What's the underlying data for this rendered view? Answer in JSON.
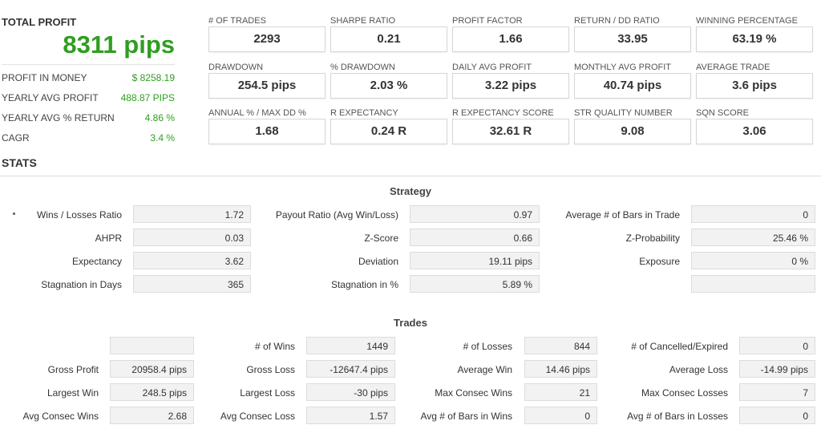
{
  "total": {
    "title": "TOTAL PROFIT",
    "value": "8311 pips",
    "rows": [
      {
        "label": "PROFIT IN MONEY",
        "value": "$ 8258.19"
      },
      {
        "label": "YEARLY AVG PROFIT",
        "value": "488.87 PIPS"
      },
      {
        "label": "YEARLY AVG % RETURN",
        "value": "4.86 %"
      },
      {
        "label": "CAGR",
        "value": "3.4 %"
      }
    ]
  },
  "metrics": [
    {
      "label": "# OF TRADES",
      "value": "2293"
    },
    {
      "label": "SHARPE RATIO",
      "value": "0.21"
    },
    {
      "label": "PROFIT FACTOR",
      "value": "1.66"
    },
    {
      "label": "RETURN / DD RATIO",
      "value": "33.95"
    },
    {
      "label": "WINNING PERCENTAGE",
      "value": "63.19 %"
    },
    {
      "label": "DRAWDOWN",
      "value": "254.5 pips"
    },
    {
      "label": "% DRAWDOWN",
      "value": "2.03 %"
    },
    {
      "label": "DAILY AVG PROFIT",
      "value": "3.22 pips"
    },
    {
      "label": "MONTHLY AVG PROFIT",
      "value": "40.74 pips"
    },
    {
      "label": "AVERAGE TRADE",
      "value": "3.6 pips"
    },
    {
      "label": "ANNUAL % / MAX DD %",
      "value": "1.68"
    },
    {
      "label": "R EXPECTANCY",
      "value": "0.24 R"
    },
    {
      "label": "R EXPECTANCY SCORE",
      "value": "32.61 R"
    },
    {
      "label": "STR QUALITY NUMBER",
      "value": "9.08"
    },
    {
      "label": "SQN SCORE",
      "value": "3.06"
    }
  ],
  "stats_title": "STATS",
  "strategy": {
    "title": "Strategy",
    "rows": [
      [
        {
          "label": "Wins / Losses Ratio",
          "value": "1.72"
        },
        {
          "label": "Payout Ratio (Avg Win/Loss)",
          "value": "0.97"
        },
        {
          "label": "Average # of Bars in Trade",
          "value": "0"
        }
      ],
      [
        {
          "label": "AHPR",
          "value": "0.03"
        },
        {
          "label": "Z-Score",
          "value": "0.66"
        },
        {
          "label": "Z-Probability",
          "value": "25.46 %"
        }
      ],
      [
        {
          "label": "Expectancy",
          "value": "3.62"
        },
        {
          "label": "Deviation",
          "value": "19.11 pips"
        },
        {
          "label": "Exposure",
          "value": "0 %"
        }
      ],
      [
        {
          "label": "Stagnation in Days",
          "value": "365"
        },
        {
          "label": "Stagnation in %",
          "value": "5.89 %"
        },
        {
          "label": "",
          "value": ""
        }
      ]
    ]
  },
  "trades": {
    "title": "Trades",
    "rows": [
      [
        {
          "label": "",
          "value": ""
        },
        {
          "label": "# of Wins",
          "value": "1449"
        },
        {
          "label": "# of Losses",
          "value": "844"
        },
        {
          "label": "# of Cancelled/Expired",
          "value": "0"
        }
      ],
      [
        {
          "label": "Gross Profit",
          "value": "20958.4 pips"
        },
        {
          "label": "Gross Loss",
          "value": "-12647.4 pips"
        },
        {
          "label": "Average Win",
          "value": "14.46 pips"
        },
        {
          "label": "Average Loss",
          "value": "-14.99 pips"
        }
      ],
      [
        {
          "label": "Largest Win",
          "value": "248.5 pips"
        },
        {
          "label": "Largest Loss",
          "value": "-30 pips"
        },
        {
          "label": "Max Consec Wins",
          "value": "21"
        },
        {
          "label": "Max Consec Losses",
          "value": "7"
        }
      ],
      [
        {
          "label": "Avg Consec Wins",
          "value": "2.68"
        },
        {
          "label": "Avg Consec Loss",
          "value": "1.57"
        },
        {
          "label": "Avg # of Bars in Wins",
          "value": "0"
        },
        {
          "label": "Avg # of Bars in Losses",
          "value": "0"
        }
      ]
    ]
  }
}
